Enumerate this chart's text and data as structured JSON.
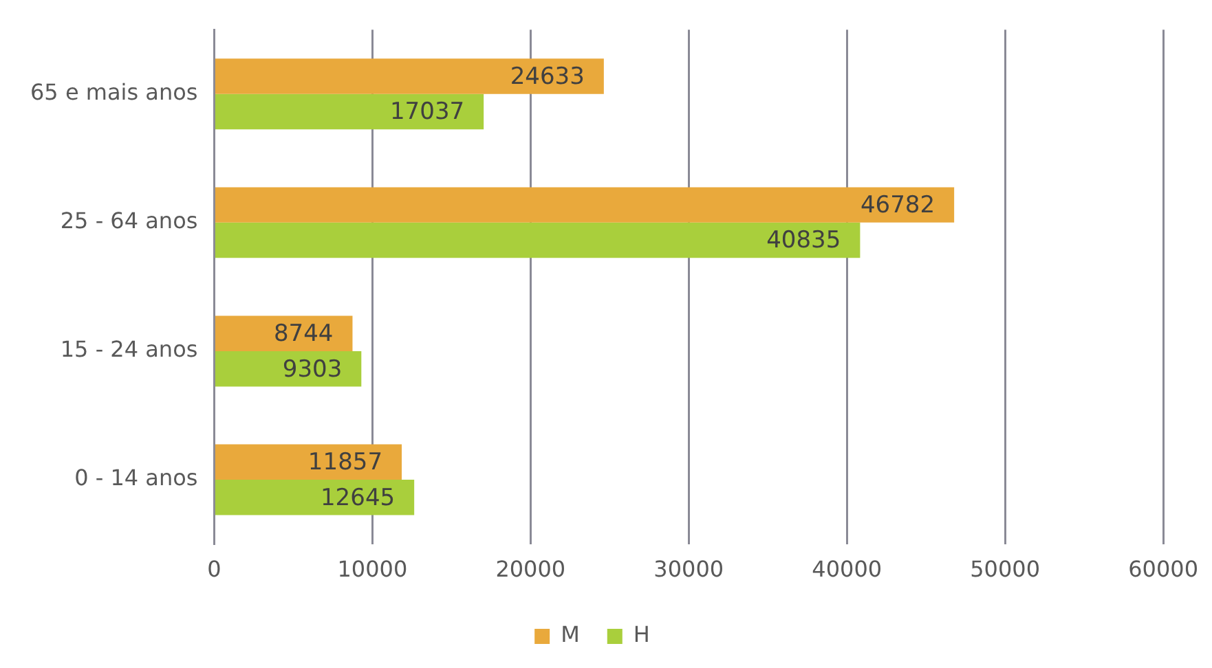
{
  "chart_data": {
    "type": "bar",
    "orientation": "horizontal",
    "categories": [
      "65 e mais anos",
      "25 - 64 anos",
      "15 - 24 anos",
      "0 - 14 anos"
    ],
    "series": [
      {
        "name": "M",
        "color": "#e9a93c",
        "values": [
          24633,
          46782,
          8744,
          11857
        ]
      },
      {
        "name": "H",
        "color": "#a9cf3c",
        "values": [
          17037,
          40835,
          9303,
          12645
        ]
      }
    ],
    "xlim": [
      0,
      60000
    ],
    "xticks": [
      0,
      10000,
      20000,
      30000,
      40000,
      50000,
      60000
    ],
    "grid": "x",
    "legend": "bottom",
    "data_labels": true
  }
}
